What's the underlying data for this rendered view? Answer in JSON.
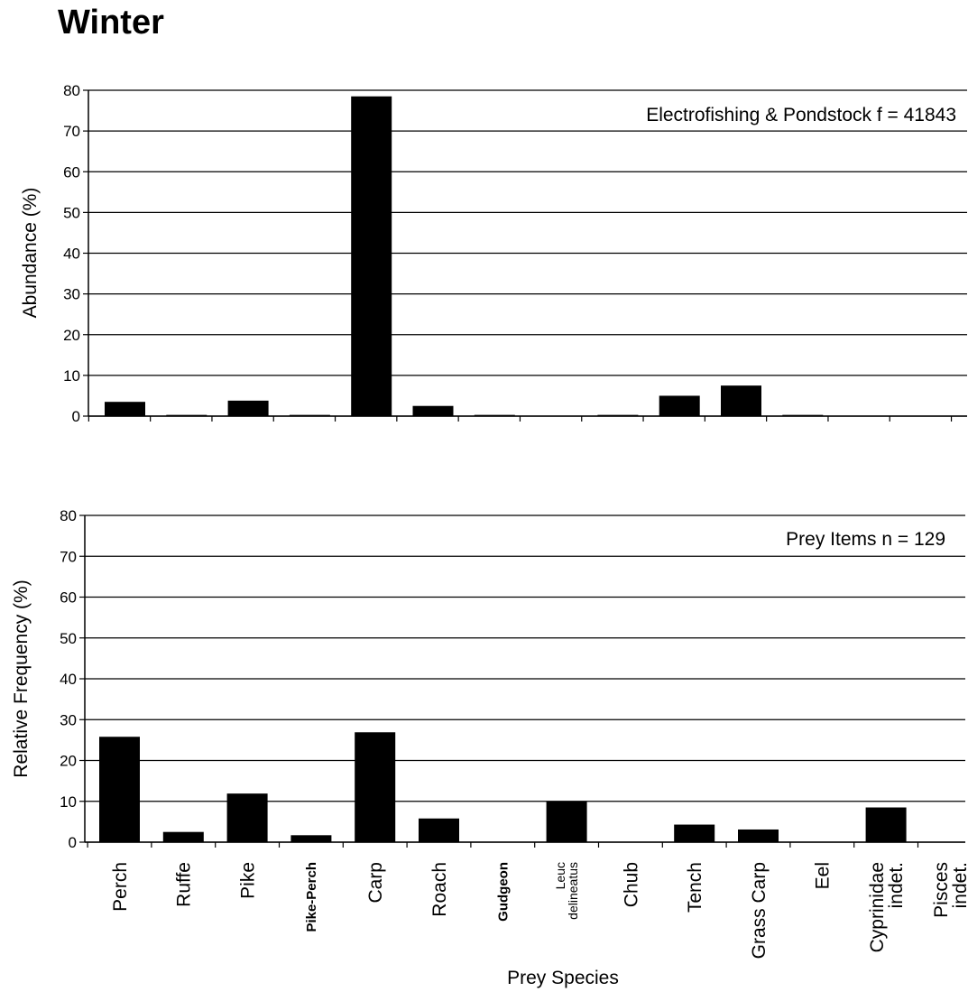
{
  "figure": {
    "title": "Winter"
  },
  "chart_data": [
    {
      "type": "bar",
      "annotation": "Electrofishing & Pondstock f = 41843",
      "xlabel": "",
      "ylabel": "Abundance (%)",
      "ylim": [
        0,
        80
      ],
      "yticks": [
        "0",
        "10",
        "20",
        "30",
        "40",
        "50",
        "60",
        "70",
        "80"
      ],
      "grid": true,
      "categories": [
        "Perch",
        "Ruffe",
        "Pike",
        "Pike-Perch",
        "Carp",
        "Roach",
        "Gudgeon",
        "Leuc delineatus",
        "Chub",
        "Tench",
        "Grass Carp",
        "Eel",
        "Cyprinidae indet.",
        "Pisces indet."
      ],
      "values": [
        3.5,
        0.3,
        3.8,
        0.3,
        78.5,
        2.5,
        0.3,
        0,
        0.3,
        5.0,
        7.5,
        0.3,
        0,
        0
      ],
      "bar_color": "#000000"
    },
    {
      "type": "bar",
      "annotation": "Prey Items n = 129",
      "xlabel": "Prey Species",
      "ylabel": "Relative Frequency (%)",
      "ylim": [
        0,
        80
      ],
      "yticks": [
        "0",
        "10",
        "20",
        "30",
        "40",
        "50",
        "60",
        "70",
        "80"
      ],
      "grid": true,
      "categories": [
        "Perch",
        "Ruffe",
        "Pike",
        "Pike-Perch",
        "Carp",
        "Roach",
        "Gudgeon",
        "Leuc delineatus",
        "Chub",
        "Tench",
        "Grass Carp",
        "Eel",
        "Cyprinidae indet.",
        "Pisces indet."
      ],
      "category_labels": [
        [
          "Perch"
        ],
        [
          "Ruffe"
        ],
        [
          "Pike"
        ],
        [
          "Pike-Perch"
        ],
        [
          "Carp"
        ],
        [
          "Roach"
        ],
        [
          "Gudgeon"
        ],
        [
          "Leuc",
          "delineatus"
        ],
        [
          "Chub"
        ],
        [
          "Tench"
        ],
        [
          "Grass Carp"
        ],
        [
          "Eel"
        ],
        [
          "Cyprinidae",
          "indet."
        ],
        [
          "Pisces",
          "indet."
        ]
      ],
      "values": [
        25.8,
        2.5,
        11.9,
        1.7,
        26.9,
        5.8,
        0,
        10.0,
        0,
        4.3,
        3.1,
        0,
        8.5,
        0
      ],
      "bar_color": "#000000"
    }
  ]
}
